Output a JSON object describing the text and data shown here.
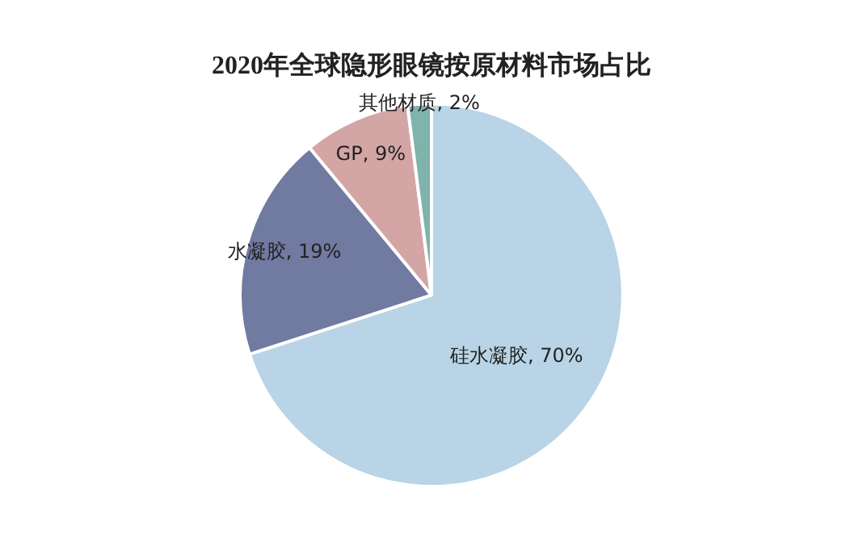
{
  "chart_data": {
    "type": "pie",
    "title": "2020年全球隐形眼镜按原材料市场占比",
    "categories": [
      "硅水凝胶",
      "水凝胶",
      "GP",
      "其他材质"
    ],
    "values": [
      70,
      19,
      9,
      2
    ],
    "colors": [
      "#b8d4e6",
      "#717aa0",
      "#d4a5a5",
      "#7fb3ab"
    ],
    "value_labels": [
      "70%",
      "19%",
      "9%",
      "2%"
    ],
    "legend": false
  }
}
